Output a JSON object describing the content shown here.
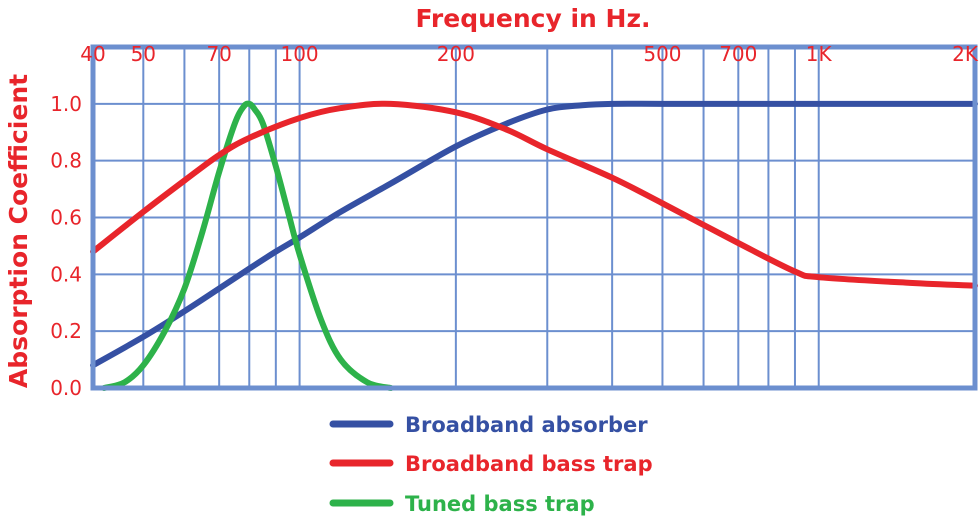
{
  "chart_data": {
    "type": "line",
    "title": "",
    "xlabel": "Frequency in Hz.",
    "ylabel": "Absorption Coefficient",
    "x_scale": "log",
    "xlim": [
      40,
      2000
    ],
    "ylim": [
      0,
      1.2
    ],
    "grid": true,
    "x_ticks": [
      {
        "value": 40,
        "label": "40"
      },
      {
        "value": 50,
        "label": "50"
      },
      {
        "value": 70,
        "label": "70"
      },
      {
        "value": 100,
        "label": "100"
      },
      {
        "value": 200,
        "label": "200"
      },
      {
        "value": 500,
        "label": "500"
      },
      {
        "value": 700,
        "label": "700"
      },
      {
        "value": 1000,
        "label": "1K"
      },
      {
        "value": 2000,
        "label": "2K"
      }
    ],
    "x_gridlines": [
      50,
      60,
      70,
      80,
      90,
      100,
      200,
      300,
      400,
      500,
      600,
      700,
      800,
      900,
      1000
    ],
    "y_ticks": [
      {
        "value": 0.0,
        "label": "0.0"
      },
      {
        "value": 0.2,
        "label": "0.2"
      },
      {
        "value": 0.4,
        "label": "0.4"
      },
      {
        "value": 0.6,
        "label": "0.6"
      },
      {
        "value": 0.8,
        "label": "0.8"
      },
      {
        "value": 1.0,
        "label": "1.0"
      }
    ],
    "legend_position": "bottom",
    "colors": {
      "axis_text": "#e8252b",
      "grid": "#6c8fcf",
      "frame": "#6c8fcf"
    },
    "series": [
      {
        "name": "Broadband absorber",
        "color": "#3550a3",
        "x": [
          40,
          50,
          60,
          70,
          80,
          90,
          100,
          120,
          150,
          200,
          250,
          300,
          350,
          400,
          500,
          700,
          1000,
          1500,
          2000
        ],
        "y": [
          0.08,
          0.18,
          0.27,
          0.35,
          0.42,
          0.48,
          0.53,
          0.62,
          0.72,
          0.85,
          0.93,
          0.98,
          0.995,
          1.0,
          1.0,
          1.0,
          1.0,
          1.0,
          1.0
        ]
      },
      {
        "name": "Broadband bass trap",
        "color": "#e8252b",
        "x": [
          40,
          50,
          60,
          70,
          80,
          100,
          120,
          150,
          200,
          250,
          300,
          400,
          500,
          700,
          900,
          1000,
          1500,
          2000
        ],
        "y": [
          0.48,
          0.62,
          0.73,
          0.82,
          0.88,
          0.95,
          0.985,
          1.0,
          0.97,
          0.91,
          0.84,
          0.74,
          0.65,
          0.51,
          0.41,
          0.39,
          0.37,
          0.36
        ]
      },
      {
        "name": "Tuned bass trap",
        "color": "#2db24a",
        "x": [
          42,
          46,
          50,
          55,
          60,
          65,
          70,
          75,
          78,
          80,
          82,
          85,
          90,
          95,
          100,
          110,
          120,
          135,
          150
        ],
        "y": [
          0.0,
          0.02,
          0.08,
          0.2,
          0.35,
          0.55,
          0.76,
          0.93,
          0.99,
          1.0,
          0.98,
          0.93,
          0.78,
          0.62,
          0.47,
          0.24,
          0.1,
          0.02,
          0.0
        ]
      }
    ]
  }
}
